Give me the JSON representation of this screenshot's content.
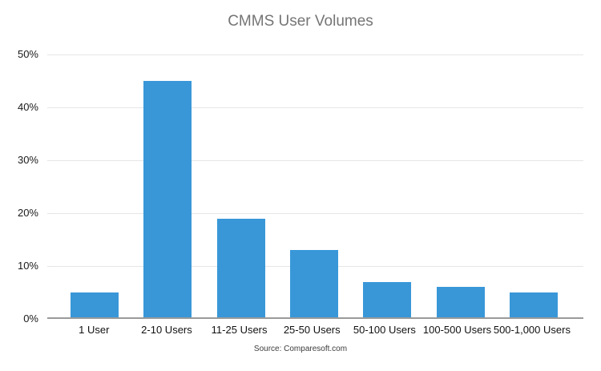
{
  "chart_data": {
    "type": "bar",
    "title": "CMMS User Volumes",
    "categories": [
      "1 User",
      "2-10 Users",
      "11-25 Users",
      "25-50 Users",
      "50-100 Users",
      "100-500 Users",
      "500-1,000 Users"
    ],
    "values": [
      5,
      45,
      19,
      13,
      7,
      6,
      5
    ],
    "unit": "%",
    "xlabel": "",
    "ylabel": "",
    "ylim": [
      0,
      50
    ],
    "ytick_labels": [
      "0%",
      "10%",
      "20%",
      "30%",
      "40%",
      "50%"
    ],
    "grid": true,
    "legend": "none",
    "bar_color": "#3997d8"
  },
  "source_note": "Source: Comparesoft.com",
  "colors": {
    "bar": "#3997d8",
    "title": "#757575",
    "axis_text": "#1a1a1a",
    "gridline": "#e6e6e6",
    "baseline": "#9a9a9a",
    "background": "#ffffff"
  }
}
